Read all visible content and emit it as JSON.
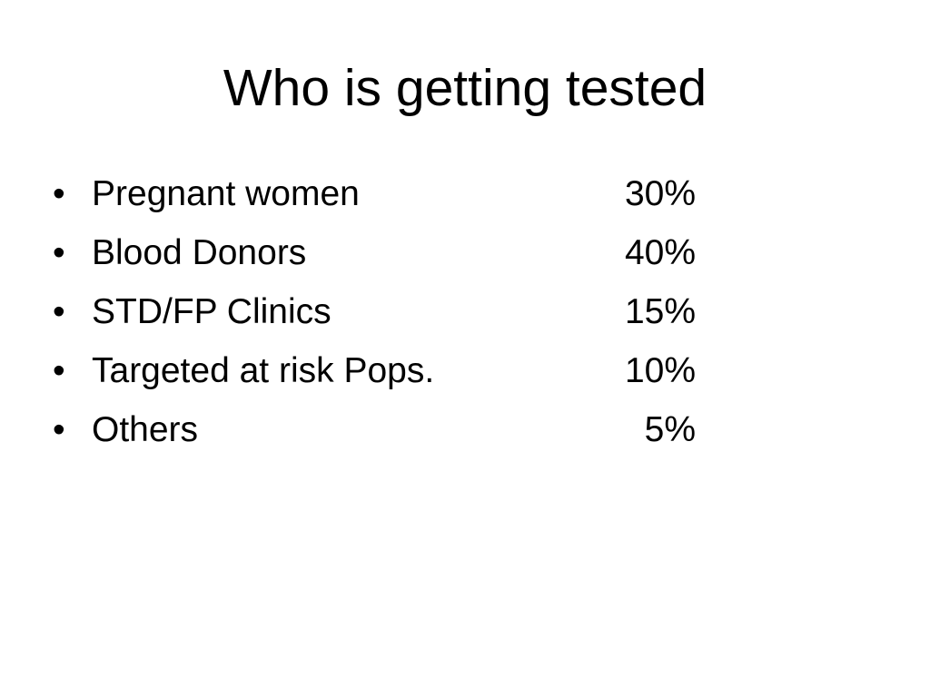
{
  "slide": {
    "title": "Who is getting tested",
    "bullet_symbol": "•",
    "items": [
      {
        "label": "Pregnant women",
        "value": "30%"
      },
      {
        "label": "Blood Donors",
        "value": "40%"
      },
      {
        "label": "STD/FP Clinics",
        "value": "15%"
      },
      {
        "label": "Targeted at risk Pops.",
        "value": "10%"
      },
      {
        "label": "Others",
        "value": "5%"
      }
    ]
  }
}
